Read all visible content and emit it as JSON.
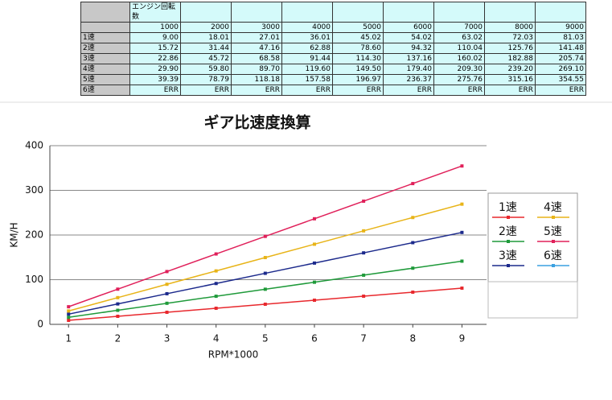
{
  "table": {
    "engine_label": "エンジン回転数",
    "columns": [
      "1000",
      "2000",
      "3000",
      "4000",
      "5000",
      "6000",
      "7000",
      "8000",
      "9000"
    ],
    "rows": [
      {
        "gear": "1速",
        "values": [
          "9.00",
          "18.01",
          "27.01",
          "36.01",
          "45.02",
          "54.02",
          "63.02",
          "72.03",
          "81.03"
        ]
      },
      {
        "gear": "2速",
        "values": [
          "15.72",
          "31.44",
          "47.16",
          "62.88",
          "78.60",
          "94.32",
          "110.04",
          "125.76",
          "141.48"
        ]
      },
      {
        "gear": "3速",
        "values": [
          "22.86",
          "45.72",
          "68.58",
          "91.44",
          "114.30",
          "137.16",
          "160.02",
          "182.88",
          "205.74"
        ]
      },
      {
        "gear": "4速",
        "values": [
          "29.90",
          "59.80",
          "89.70",
          "119.60",
          "149.50",
          "179.40",
          "209.30",
          "239.20",
          "269.10"
        ]
      },
      {
        "gear": "5速",
        "values": [
          "39.39",
          "78.79",
          "118.18",
          "157.58",
          "196.97",
          "236.37",
          "275.76",
          "315.16",
          "354.55"
        ]
      },
      {
        "gear": "6速",
        "values": [
          "ERR",
          "ERR",
          "ERR",
          "ERR",
          "ERR",
          "ERR",
          "ERR",
          "ERR",
          "ERR"
        ]
      }
    ]
  },
  "chart_data": {
    "type": "line",
    "title": "ギア比速度換算",
    "x_label": "RPM*1000",
    "y_label": "KM/H",
    "x": [
      1,
      2,
      3,
      4,
      5,
      6,
      7,
      8,
      9
    ],
    "xlim": [
      0.62,
      9.5
    ],
    "xticks": [
      1,
      2,
      3,
      4,
      5,
      6,
      7,
      8,
      9
    ],
    "ylim": [
      0,
      400
    ],
    "yticks": [
      0,
      100,
      200,
      300,
      400
    ],
    "grid": true,
    "legend": "right",
    "series": [
      {
        "name": "1速",
        "color": "#e8282d",
        "values": [
          9.0,
          18.01,
          27.01,
          36.01,
          45.02,
          54.02,
          63.02,
          72.03,
          81.03
        ]
      },
      {
        "name": "2速",
        "color": "#1f9a3a",
        "values": [
          15.72,
          31.44,
          47.16,
          62.88,
          78.6,
          94.32,
          110.04,
          125.76,
          141.48
        ]
      },
      {
        "name": "3速",
        "color": "#1c2a8c",
        "values": [
          22.86,
          45.72,
          68.58,
          91.44,
          114.3,
          137.16,
          160.02,
          182.88,
          205.74
        ]
      },
      {
        "name": "4速",
        "color": "#e8b418",
        "values": [
          29.9,
          59.8,
          89.7,
          119.6,
          149.5,
          179.4,
          209.3,
          239.2,
          269.1
        ]
      },
      {
        "name": "5速",
        "color": "#e0205a",
        "values": [
          39.39,
          78.79,
          118.18,
          157.58,
          196.97,
          236.37,
          275.76,
          315.16,
          354.55
        ]
      },
      {
        "name": "6速",
        "color": "#3aa0e0",
        "values": [
          null,
          null,
          null,
          null,
          null,
          null,
          null,
          null,
          null
        ]
      }
    ]
  }
}
